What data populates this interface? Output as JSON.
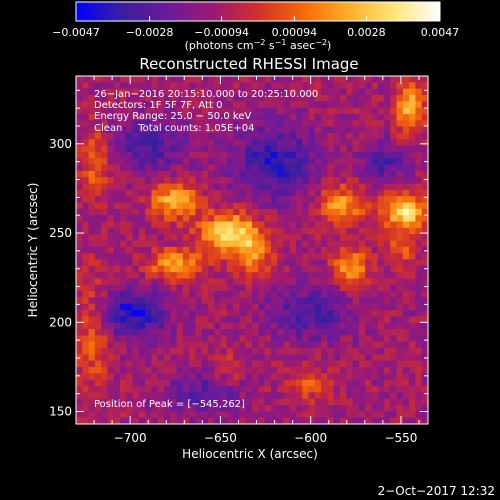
{
  "chart_data": {
    "type": "heatmap",
    "title": "Reconstructed RHESSI Image",
    "xlabel": "Heliocentric X (arcsec)",
    "ylabel": "Heliocentric Y (arcsec)",
    "xlim": [
      -730,
      -535
    ],
    "ylim": [
      143,
      338
    ],
    "x_ticks": [
      -700,
      -650,
      -600,
      -550
    ],
    "y_ticks": [
      150,
      200,
      250,
      300
    ],
    "x_tick_labels": [
      "−700",
      "−650",
      "−600",
      "−550"
    ],
    "y_tick_labels": [
      "150",
      "200",
      "250",
      "300"
    ],
    "colorbar": {
      "range": [
        -0.0047,
        0.0047
      ],
      "ticks": [
        -0.0047,
        -0.0028,
        -0.00094,
        0.00094,
        0.0028,
        0.0047
      ],
      "tick_labels": [
        "−0.0047",
        "−0.0028",
        "−0.00094",
        "0.00094",
        "0.0028",
        "0.0047"
      ],
      "unit_text": "(photons cm",
      "unit_sup1": "−2",
      "unit_mid": " s",
      "unit_sup2": "−1",
      "unit_end": " asec",
      "unit_sup3": "−2",
      "unit_close": ")",
      "colors": [
        "#0000ff",
        "#3a1f9e",
        "#6a1a9a",
        "#9c1a74",
        "#d1302a",
        "#f56a0a",
        "#ffae28",
        "#ffe67a",
        "#ffffff"
      ]
    },
    "annotations": [
      "26−Jan−2016 20:15:10.000 to 20:25:10.000",
      "Detectors: 1F 5F 7F, Att 0",
      "Energy Range: 25.0 − 50.0 keV",
      "Clean     Total counts: 1.05E+04"
    ],
    "peak_text": "Position of Peak = [−545,262]",
    "sources": [
      {
        "x": -645,
        "y": 250,
        "sx": 11,
        "sy": 8,
        "amp": 0.0045
      },
      {
        "x": -632,
        "y": 238,
        "sx": 7,
        "sy": 9,
        "amp": 0.0026
      },
      {
        "x": -675,
        "y": 268,
        "sx": 9,
        "sy": 7,
        "amp": 0.0038
      },
      {
        "x": -675,
        "y": 232,
        "sx": 10,
        "sy": 6,
        "amp": 0.0034
      },
      {
        "x": -548,
        "y": 262,
        "sx": 8,
        "sy": 7,
        "amp": 0.0047
      },
      {
        "x": -583,
        "y": 265,
        "sx": 9,
        "sy": 8,
        "amp": 0.0032
      },
      {
        "x": -578,
        "y": 230,
        "sx": 7,
        "sy": 8,
        "amp": 0.0033
      },
      {
        "x": -545,
        "y": 320,
        "sx": 6,
        "sy": 10,
        "amp": 0.0036
      },
      {
        "x": -550,
        "y": 240,
        "sx": 6,
        "sy": 6,
        "amp": 0.0018
      },
      {
        "x": -720,
        "y": 195,
        "sx": 7,
        "sy": 22,
        "amp": 0.002
      },
      {
        "x": -720,
        "y": 290,
        "sx": 6,
        "sy": 14,
        "amp": 0.002
      },
      {
        "x": -600,
        "y": 165,
        "sx": 8,
        "sy": 6,
        "amp": 0.0017
      },
      {
        "x": -645,
        "y": 175,
        "sx": 6,
        "sy": 6,
        "amp": 0.0012
      },
      {
        "x": -700,
        "y": 205,
        "sx": 14,
        "sy": 10,
        "amp": -0.003
      },
      {
        "x": -690,
        "y": 300,
        "sx": 14,
        "sy": 10,
        "amp": -0.0022
      },
      {
        "x": -620,
        "y": 290,
        "sx": 16,
        "sy": 14,
        "amp": -0.0026
      },
      {
        "x": -600,
        "y": 205,
        "sx": 16,
        "sy": 10,
        "amp": -0.0022
      },
      {
        "x": -560,
        "y": 290,
        "sx": 8,
        "sy": 8,
        "amp": -0.002
      },
      {
        "x": -660,
        "y": 160,
        "sx": 14,
        "sy": 8,
        "amp": -0.0018
      }
    ]
  },
  "footer": {
    "date": "2−Oct−2017 12:32"
  }
}
